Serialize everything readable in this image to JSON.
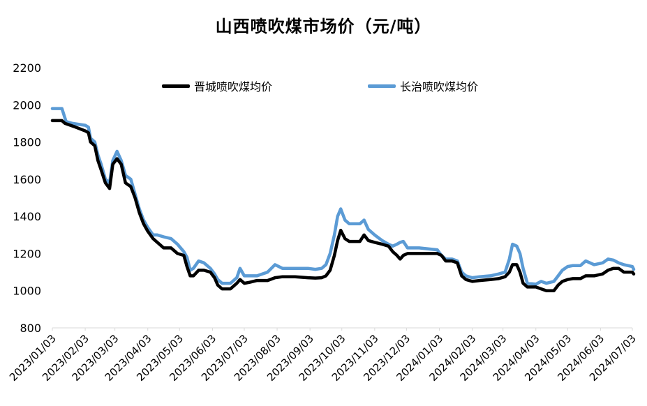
{
  "chart_data": {
    "type": "line",
    "title": "山西喷吹煤市场价（元/吨）",
    "ylim": [
      800,
      2200
    ],
    "yticks": [
      800,
      1000,
      1200,
      1400,
      1600,
      1800,
      2000,
      2200
    ],
    "xlim": [
      "2023-01-03",
      "2024-07-03"
    ],
    "xtick_labels": [
      "2023/01/03",
      "2023/02/03",
      "2023/03/03",
      "2023/04/03",
      "2023/05/03",
      "2023/06/03",
      "2023/07/03",
      "2023/08/03",
      "2023/09/03",
      "2023/10/03",
      "2023/11/03",
      "2023/12/03",
      "2024/01/03",
      "2024/02/03",
      "2024/03/03",
      "2024/04/03",
      "2024/05/03",
      "2024/06/03",
      "2024/07/03"
    ],
    "legend_position": "top",
    "grid": false,
    "series": [
      {
        "name": "晋城喷吹煤均价",
        "color": "#000000",
        "points": [
          [
            "2023-01-03",
            1915
          ],
          [
            "2023-01-12",
            1915
          ],
          [
            "2023-01-15",
            1900
          ],
          [
            "2023-01-25",
            1880
          ],
          [
            "2023-02-03",
            1860
          ],
          [
            "2023-02-06",
            1850
          ],
          [
            "2023-02-08",
            1800
          ],
          [
            "2023-02-12",
            1780
          ],
          [
            "2023-02-15",
            1700
          ],
          [
            "2023-02-18",
            1650
          ],
          [
            "2023-02-22",
            1580
          ],
          [
            "2023-02-26",
            1550
          ],
          [
            "2023-03-01",
            1680
          ],
          [
            "2023-03-05",
            1710
          ],
          [
            "2023-03-09",
            1680
          ],
          [
            "2023-03-13",
            1580
          ],
          [
            "2023-03-18",
            1560
          ],
          [
            "2023-03-22",
            1500
          ],
          [
            "2023-03-26",
            1420
          ],
          [
            "2023-03-30",
            1360
          ],
          [
            "2023-04-03",
            1320
          ],
          [
            "2023-04-08",
            1280
          ],
          [
            "2023-04-12",
            1260
          ],
          [
            "2023-04-18",
            1230
          ],
          [
            "2023-04-25",
            1230
          ],
          [
            "2023-05-01",
            1200
          ],
          [
            "2023-05-07",
            1190
          ],
          [
            "2023-05-10",
            1130
          ],
          [
            "2023-05-13",
            1080
          ],
          [
            "2023-05-16",
            1080
          ],
          [
            "2023-05-21",
            1110
          ],
          [
            "2023-05-26",
            1110
          ],
          [
            "2023-06-01",
            1100
          ],
          [
            "2023-06-05",
            1070
          ],
          [
            "2023-06-08",
            1030
          ],
          [
            "2023-06-12",
            1010
          ],
          [
            "2023-06-20",
            1010
          ],
          [
            "2023-06-26",
            1040
          ],
          [
            "2023-06-29",
            1060
          ],
          [
            "2023-07-03",
            1040
          ],
          [
            "2023-07-08",
            1045
          ],
          [
            "2023-07-15",
            1055
          ],
          [
            "2023-07-25",
            1055
          ],
          [
            "2023-08-01",
            1070
          ],
          [
            "2023-08-08",
            1075
          ],
          [
            "2023-08-20",
            1075
          ],
          [
            "2023-09-01",
            1070
          ],
          [
            "2023-09-08",
            1068
          ],
          [
            "2023-09-14",
            1070
          ],
          [
            "2023-09-18",
            1080
          ],
          [
            "2023-09-22",
            1110
          ],
          [
            "2023-09-26",
            1190
          ],
          [
            "2023-09-29",
            1270
          ],
          [
            "2023-10-02",
            1325
          ],
          [
            "2023-10-06",
            1280
          ],
          [
            "2023-10-10",
            1265
          ],
          [
            "2023-10-20",
            1265
          ],
          [
            "2023-10-24",
            1300
          ],
          [
            "2023-10-28",
            1270
          ],
          [
            "2023-11-03",
            1260
          ],
          [
            "2023-11-10",
            1250
          ],
          [
            "2023-11-16",
            1240
          ],
          [
            "2023-11-20",
            1210
          ],
          [
            "2023-11-24",
            1190
          ],
          [
            "2023-11-27",
            1170
          ],
          [
            "2023-11-30",
            1190
          ],
          [
            "2023-12-04",
            1200
          ],
          [
            "2023-12-15",
            1200
          ],
          [
            "2024-01-01",
            1200
          ],
          [
            "2024-01-05",
            1190
          ],
          [
            "2024-01-09",
            1160
          ],
          [
            "2024-01-15",
            1160
          ],
          [
            "2024-01-20",
            1150
          ],
          [
            "2024-01-24",
            1080
          ],
          [
            "2024-01-28",
            1060
          ],
          [
            "2024-02-03",
            1050
          ],
          [
            "2024-02-10",
            1055
          ],
          [
            "2024-02-20",
            1060
          ],
          [
            "2024-02-28",
            1065
          ],
          [
            "2024-03-05",
            1075
          ],
          [
            "2024-03-09",
            1100
          ],
          [
            "2024-03-12",
            1140
          ],
          [
            "2024-03-16",
            1140
          ],
          [
            "2024-03-19",
            1100
          ],
          [
            "2024-03-22",
            1040
          ],
          [
            "2024-03-26",
            1020
          ],
          [
            "2024-04-03",
            1020
          ],
          [
            "2024-04-08",
            1010
          ],
          [
            "2024-04-13",
            1000
          ],
          [
            "2024-04-20",
            1000
          ],
          [
            "2024-04-24",
            1030
          ],
          [
            "2024-04-28",
            1050
          ],
          [
            "2024-05-03",
            1060
          ],
          [
            "2024-05-08",
            1065
          ],
          [
            "2024-05-15",
            1065
          ],
          [
            "2024-05-20",
            1080
          ],
          [
            "2024-05-28",
            1080
          ],
          [
            "2024-06-05",
            1090
          ],
          [
            "2024-06-10",
            1110
          ],
          [
            "2024-06-15",
            1120
          ],
          [
            "2024-06-20",
            1120
          ],
          [
            "2024-06-25",
            1100
          ],
          [
            "2024-07-03",
            1100
          ],
          [
            "2024-07-08",
            1090
          ]
        ]
      },
      {
        "name": "长治喷吹煤均价",
        "color": "#5b9bd5",
        "points": [
          [
            "2023-01-03",
            1980
          ],
          [
            "2023-01-12",
            1980
          ],
          [
            "2023-01-16",
            1910
          ],
          [
            "2023-01-22",
            1900
          ],
          [
            "2023-02-03",
            1890
          ],
          [
            "2023-02-06",
            1880
          ],
          [
            "2023-02-08",
            1820
          ],
          [
            "2023-02-12",
            1800
          ],
          [
            "2023-02-15",
            1730
          ],
          [
            "2023-02-18",
            1680
          ],
          [
            "2023-02-22",
            1600
          ],
          [
            "2023-02-26",
            1580
          ],
          [
            "2023-03-01",
            1700
          ],
          [
            "2023-03-05",
            1750
          ],
          [
            "2023-03-09",
            1700
          ],
          [
            "2023-03-13",
            1620
          ],
          [
            "2023-03-18",
            1600
          ],
          [
            "2023-03-22",
            1520
          ],
          [
            "2023-03-26",
            1440
          ],
          [
            "2023-03-30",
            1380
          ],
          [
            "2023-04-03",
            1340
          ],
          [
            "2023-04-08",
            1300
          ],
          [
            "2023-04-12",
            1300
          ],
          [
            "2023-04-18",
            1290
          ],
          [
            "2023-04-25",
            1280
          ],
          [
            "2023-05-01",
            1250
          ],
          [
            "2023-05-07",
            1210
          ],
          [
            "2023-05-10",
            1180
          ],
          [
            "2023-05-13",
            1110
          ],
          [
            "2023-05-16",
            1120
          ],
          [
            "2023-05-21",
            1160
          ],
          [
            "2023-05-26",
            1150
          ],
          [
            "2023-06-01",
            1120
          ],
          [
            "2023-06-05",
            1090
          ],
          [
            "2023-06-08",
            1060
          ],
          [
            "2023-06-12",
            1040
          ],
          [
            "2023-06-20",
            1040
          ],
          [
            "2023-06-26",
            1070
          ],
          [
            "2023-06-29",
            1120
          ],
          [
            "2023-07-03",
            1080
          ],
          [
            "2023-07-08",
            1080
          ],
          [
            "2023-07-15",
            1080
          ],
          [
            "2023-07-25",
            1100
          ],
          [
            "2023-08-01",
            1140
          ],
          [
            "2023-08-08",
            1120
          ],
          [
            "2023-08-20",
            1120
          ],
          [
            "2023-09-01",
            1120
          ],
          [
            "2023-09-08",
            1115
          ],
          [
            "2023-09-14",
            1120
          ],
          [
            "2023-09-18",
            1140
          ],
          [
            "2023-09-22",
            1200
          ],
          [
            "2023-09-26",
            1300
          ],
          [
            "2023-09-29",
            1400
          ],
          [
            "2023-10-02",
            1440
          ],
          [
            "2023-10-06",
            1380
          ],
          [
            "2023-10-10",
            1360
          ],
          [
            "2023-10-20",
            1360
          ],
          [
            "2023-10-24",
            1380
          ],
          [
            "2023-10-28",
            1330
          ],
          [
            "2023-11-03",
            1300
          ],
          [
            "2023-11-10",
            1270
          ],
          [
            "2023-11-16",
            1250
          ],
          [
            "2023-11-20",
            1240
          ],
          [
            "2023-11-24",
            1250
          ],
          [
            "2023-11-27",
            1260
          ],
          [
            "2023-11-30",
            1265
          ],
          [
            "2023-12-04",
            1230
          ],
          [
            "2023-12-15",
            1230
          ],
          [
            "2024-01-01",
            1220
          ],
          [
            "2024-01-05",
            1190
          ],
          [
            "2024-01-09",
            1170
          ],
          [
            "2024-01-15",
            1170
          ],
          [
            "2024-01-20",
            1160
          ],
          [
            "2024-01-24",
            1100
          ],
          [
            "2024-01-28",
            1080
          ],
          [
            "2024-02-03",
            1070
          ],
          [
            "2024-02-10",
            1075
          ],
          [
            "2024-02-20",
            1080
          ],
          [
            "2024-02-28",
            1090
          ],
          [
            "2024-03-05",
            1100
          ],
          [
            "2024-03-09",
            1170
          ],
          [
            "2024-03-12",
            1250
          ],
          [
            "2024-03-16",
            1240
          ],
          [
            "2024-03-19",
            1200
          ],
          [
            "2024-03-22",
            1120
          ],
          [
            "2024-03-26",
            1040
          ],
          [
            "2024-04-03",
            1035
          ],
          [
            "2024-04-08",
            1050
          ],
          [
            "2024-04-13",
            1040
          ],
          [
            "2024-04-20",
            1050
          ],
          [
            "2024-04-24",
            1080
          ],
          [
            "2024-04-28",
            1110
          ],
          [
            "2024-05-03",
            1130
          ],
          [
            "2024-05-08",
            1135
          ],
          [
            "2024-05-15",
            1135
          ],
          [
            "2024-05-20",
            1160
          ],
          [
            "2024-05-28",
            1140
          ],
          [
            "2024-06-05",
            1150
          ],
          [
            "2024-06-10",
            1170
          ],
          [
            "2024-06-15",
            1165
          ],
          [
            "2024-06-20",
            1150
          ],
          [
            "2024-06-25",
            1140
          ],
          [
            "2024-07-03",
            1130
          ],
          [
            "2024-07-08",
            1115
          ]
        ]
      }
    ]
  }
}
